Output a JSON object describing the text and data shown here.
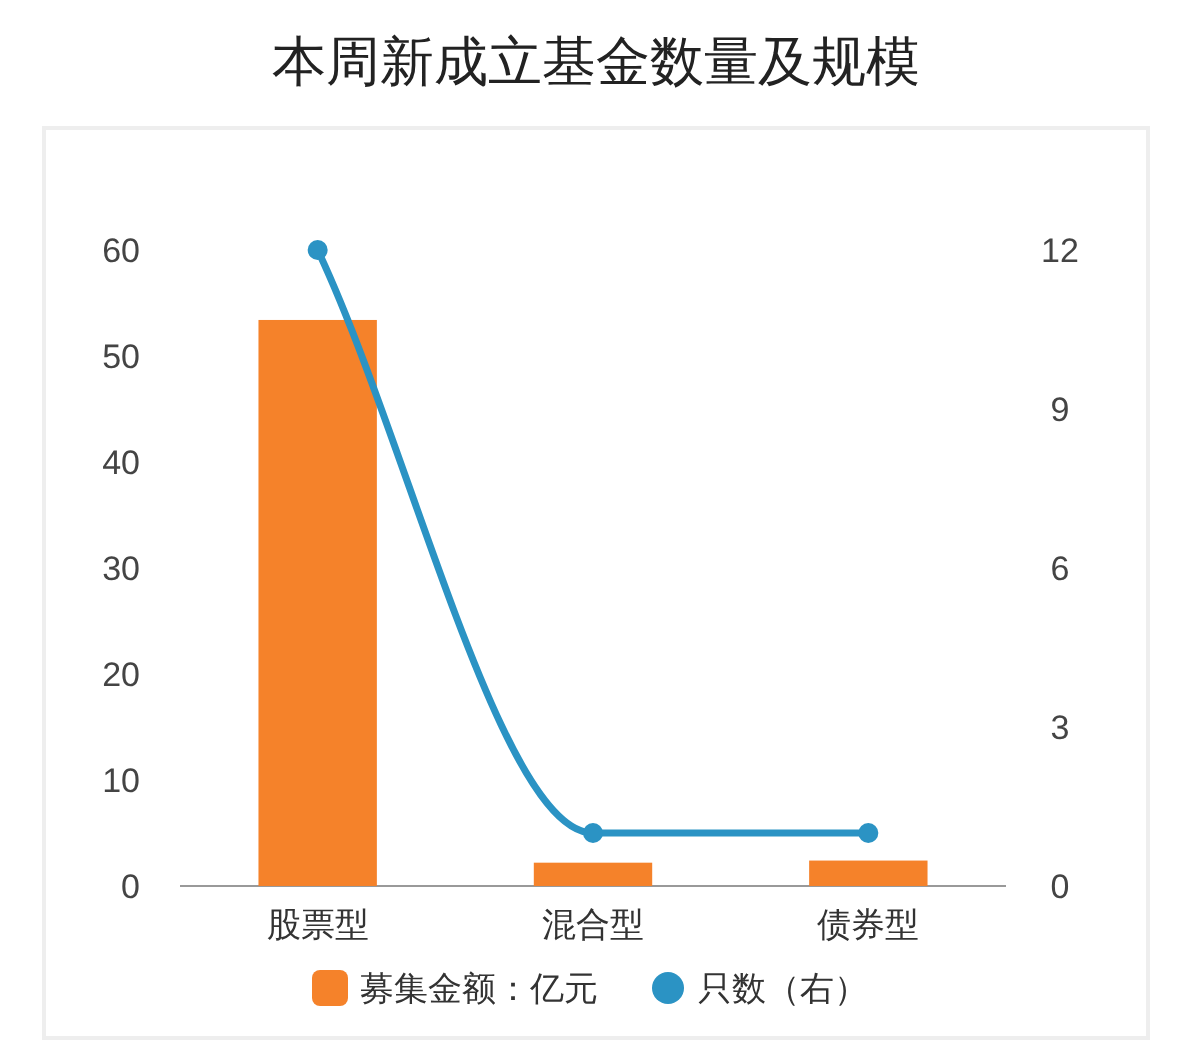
{
  "chart_data": {
    "type": "bar",
    "title": "本周新成立基金数量及规模",
    "categories": [
      "股票型",
      "混合型",
      "债券型"
    ],
    "series": [
      {
        "name": "募集金额：亿元",
        "color": "#f5822a",
        "values": [
          53.4,
          2.2,
          2.4
        ]
      },
      {
        "name": "只数（右）",
        "type": "line",
        "axis": "y2",
        "color": "#2b93c4",
        "marker": "circle",
        "values": [
          12,
          1,
          1
        ]
      }
    ],
    "ylim": [
      0,
      60
    ],
    "yticks": [
      0,
      10,
      20,
      30,
      40,
      50,
      60
    ],
    "y2lim": [
      0,
      12
    ],
    "y2ticks": [
      0,
      3,
      6,
      9,
      12
    ],
    "grid": false,
    "legend": "bottom"
  }
}
